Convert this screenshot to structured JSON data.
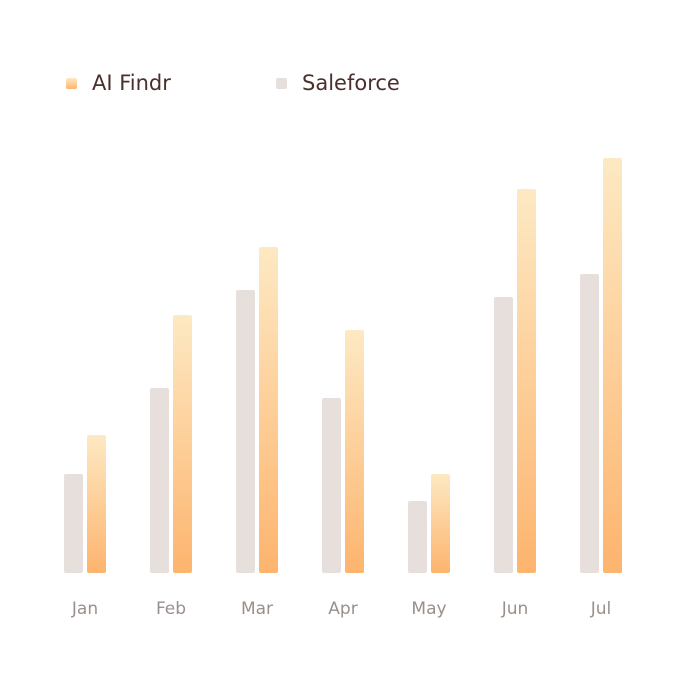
{
  "chart_data": {
    "type": "bar",
    "categories": [
      "Jan",
      "Feb",
      "Mar",
      "Apr",
      "May",
      "Jun",
      "Jul"
    ],
    "series": [
      {
        "name": "AI Findr",
        "color": "#fdb46e",
        "values": [
          138,
          258,
          326,
          243,
          99,
          384,
          415
        ]
      },
      {
        "name": "Saleforce",
        "color": "#e6dfdc",
        "values": [
          99,
          185,
          283,
          175,
          72,
          276,
          299
        ]
      }
    ]
  }
}
